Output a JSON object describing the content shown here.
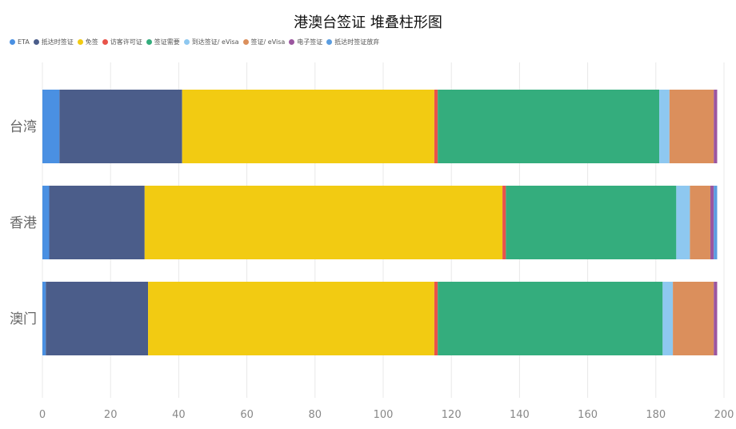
{
  "chart_data": {
    "type": "bar",
    "orientation": "horizontal",
    "stacked": true,
    "title": "港澳台签证 堆叠柱形图",
    "categories": [
      "台湾",
      "香港",
      "澳门"
    ],
    "xlim": [
      0,
      200
    ],
    "xticks": [
      0,
      20,
      40,
      60,
      80,
      100,
      120,
      140,
      160,
      180,
      200
    ],
    "grid": true,
    "legend_position": "top-left",
    "series": [
      {
        "name": "ETA",
        "color": "#4a90e2",
        "values": [
          5,
          2,
          1
        ]
      },
      {
        "name": "抵达时签证",
        "color": "#4b5d8a",
        "values": [
          36,
          28,
          30
        ]
      },
      {
        "name": "免签",
        "color": "#f2cb12",
        "values": [
          74,
          105,
          84
        ]
      },
      {
        "name": "访客许可证",
        "color": "#e8534a",
        "values": [
          1,
          1,
          1
        ]
      },
      {
        "name": "签证需要",
        "color": "#34ad7d",
        "values": [
          65,
          50,
          66
        ]
      },
      {
        "name": "到达签证/ eVisa",
        "color": "#8ec8f0",
        "values": [
          3,
          4,
          3
        ]
      },
      {
        "name": "签证/ eVisa",
        "color": "#db8f5c",
        "values": [
          13,
          6,
          12
        ]
      },
      {
        "name": "电子签证",
        "color": "#9b569f",
        "values": [
          1,
          1,
          1
        ]
      },
      {
        "name": "抵达时签证放弃",
        "color": "#5b9de0",
        "values": [
          0,
          1,
          0
        ]
      }
    ]
  }
}
